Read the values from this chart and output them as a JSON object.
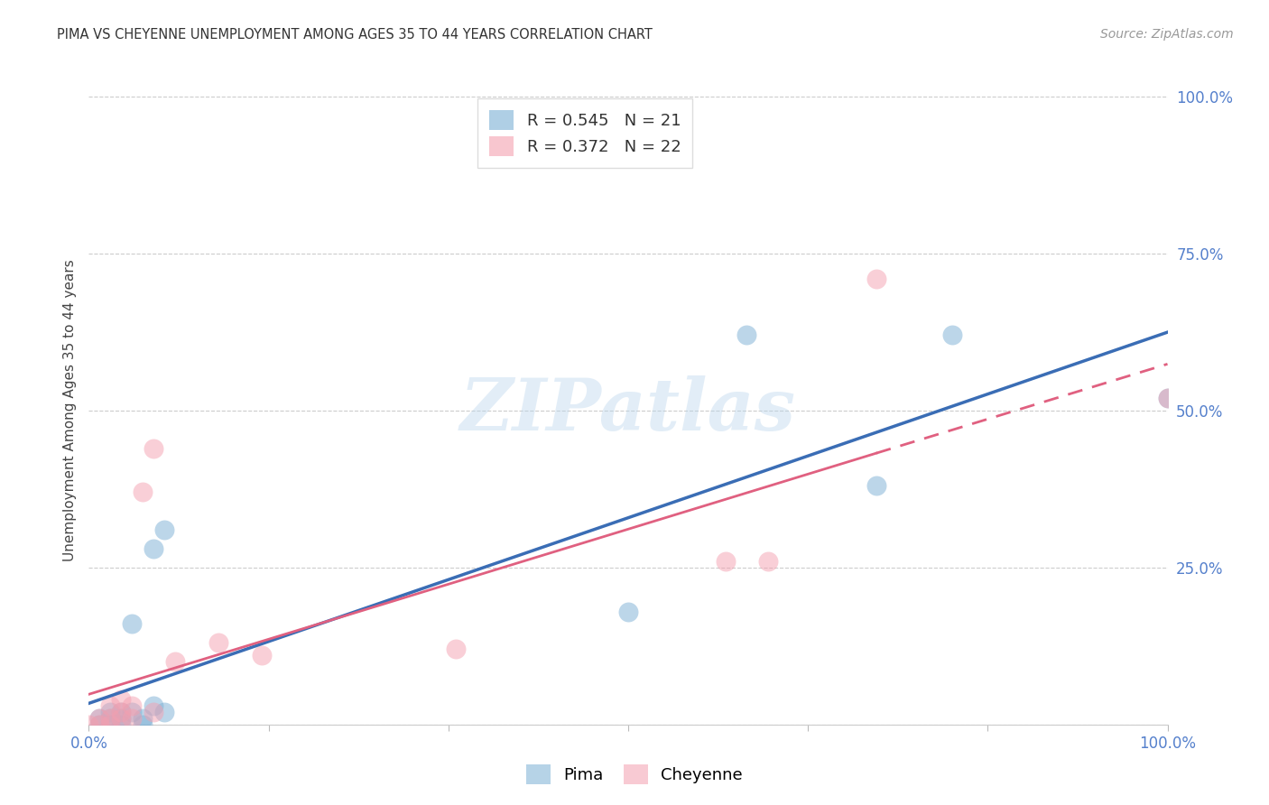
{
  "title": "PIMA VS CHEYENNE UNEMPLOYMENT AMONG AGES 35 TO 44 YEARS CORRELATION CHART",
  "source": "Source: ZipAtlas.com",
  "ylabel": "Unemployment Among Ages 35 to 44 years",
  "background_color": "#ffffff",
  "grid_color": "#cccccc",
  "pima_color": "#7bafd4",
  "cheyenne_color": "#f4a0b0",
  "line_pima_color": "#3a6db5",
  "line_cheyenne_color": "#e06080",
  "axis_label_color": "#5580cc",
  "title_color": "#333333",
  "source_color": "#999999",
  "pima_R": 0.545,
  "pima_N": 21,
  "cheyenne_R": 0.372,
  "cheyenne_N": 22,
  "pima_x": [
    0.01,
    0.01,
    0.02,
    0.02,
    0.02,
    0.03,
    0.03,
    0.03,
    0.04,
    0.04,
    0.05,
    0.05,
    0.06,
    0.06,
    0.07,
    0.07,
    0.5,
    0.61,
    0.73,
    0.8,
    1.0
  ],
  "pima_y": [
    0.0,
    0.01,
    0.0,
    0.01,
    0.02,
    0.0,
    0.01,
    0.02,
    0.02,
    0.16,
    0.0,
    0.01,
    0.03,
    0.28,
    0.02,
    0.31,
    0.18,
    0.62,
    0.38,
    0.62,
    0.52
  ],
  "cheyenne_x": [
    0.0,
    0.01,
    0.01,
    0.02,
    0.02,
    0.02,
    0.03,
    0.03,
    0.03,
    0.04,
    0.04,
    0.05,
    0.06,
    0.06,
    0.08,
    0.12,
    0.16,
    0.34,
    0.59,
    0.63,
    0.73,
    1.0
  ],
  "cheyenne_y": [
    0.0,
    0.0,
    0.01,
    0.0,
    0.01,
    0.03,
    0.01,
    0.02,
    0.04,
    0.01,
    0.03,
    0.37,
    0.02,
    0.44,
    0.1,
    0.13,
    0.11,
    0.12,
    0.26,
    0.26,
    0.71,
    0.52
  ],
  "watermark_text": "ZIPatlas",
  "ytick_positions": [
    0.0,
    0.25,
    0.5,
    0.75,
    1.0
  ],
  "ytick_labels": [
    "",
    "25.0%",
    "50.0%",
    "75.0%",
    "100.0%"
  ],
  "xtick_positions": [
    0.0,
    1.0
  ],
  "xtick_labels": [
    "0.0%",
    "100.0%"
  ],
  "line_break_x": 0.73
}
